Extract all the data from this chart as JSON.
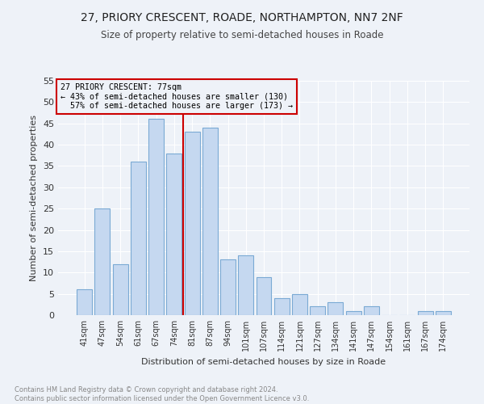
{
  "title_line1": "27, PRIORY CRESCENT, ROADE, NORTHAMPTON, NN7 2NF",
  "title_line2": "Size of property relative to semi-detached houses in Roade",
  "xlabel": "Distribution of semi-detached houses by size in Roade",
  "ylabel": "Number of semi-detached properties",
  "footnote": "Contains HM Land Registry data © Crown copyright and database right 2024.\nContains public sector information licensed under the Open Government Licence v3.0.",
  "bar_labels": [
    "41sqm",
    "47sqm",
    "54sqm",
    "61sqm",
    "67sqm",
    "74sqm",
    "81sqm",
    "87sqm",
    "94sqm",
    "101sqm",
    "107sqm",
    "114sqm",
    "121sqm",
    "127sqm",
    "134sqm",
    "141sqm",
    "147sqm",
    "154sqm",
    "161sqm",
    "167sqm",
    "174sqm"
  ],
  "bar_values": [
    6,
    25,
    12,
    36,
    46,
    38,
    43,
    44,
    13,
    14,
    9,
    4,
    5,
    2,
    3,
    1,
    2,
    0,
    0,
    1,
    1
  ],
  "property_label": "27 PRIORY CRESCENT: 77sqm",
  "pct_smaller": 43,
  "count_smaller": 130,
  "pct_larger": 57,
  "count_larger": 173,
  "vline_x": 5.5,
  "bar_color": "#c5d8f0",
  "bar_edgecolor": "#7baad4",
  "vline_color": "#cc0000",
  "annotation_box_edgecolor": "#cc0000",
  "background_color": "#eef2f8",
  "ylim": [
    0,
    55
  ],
  "yticks": [
    0,
    5,
    10,
    15,
    20,
    25,
    30,
    35,
    40,
    45,
    50,
    55
  ]
}
